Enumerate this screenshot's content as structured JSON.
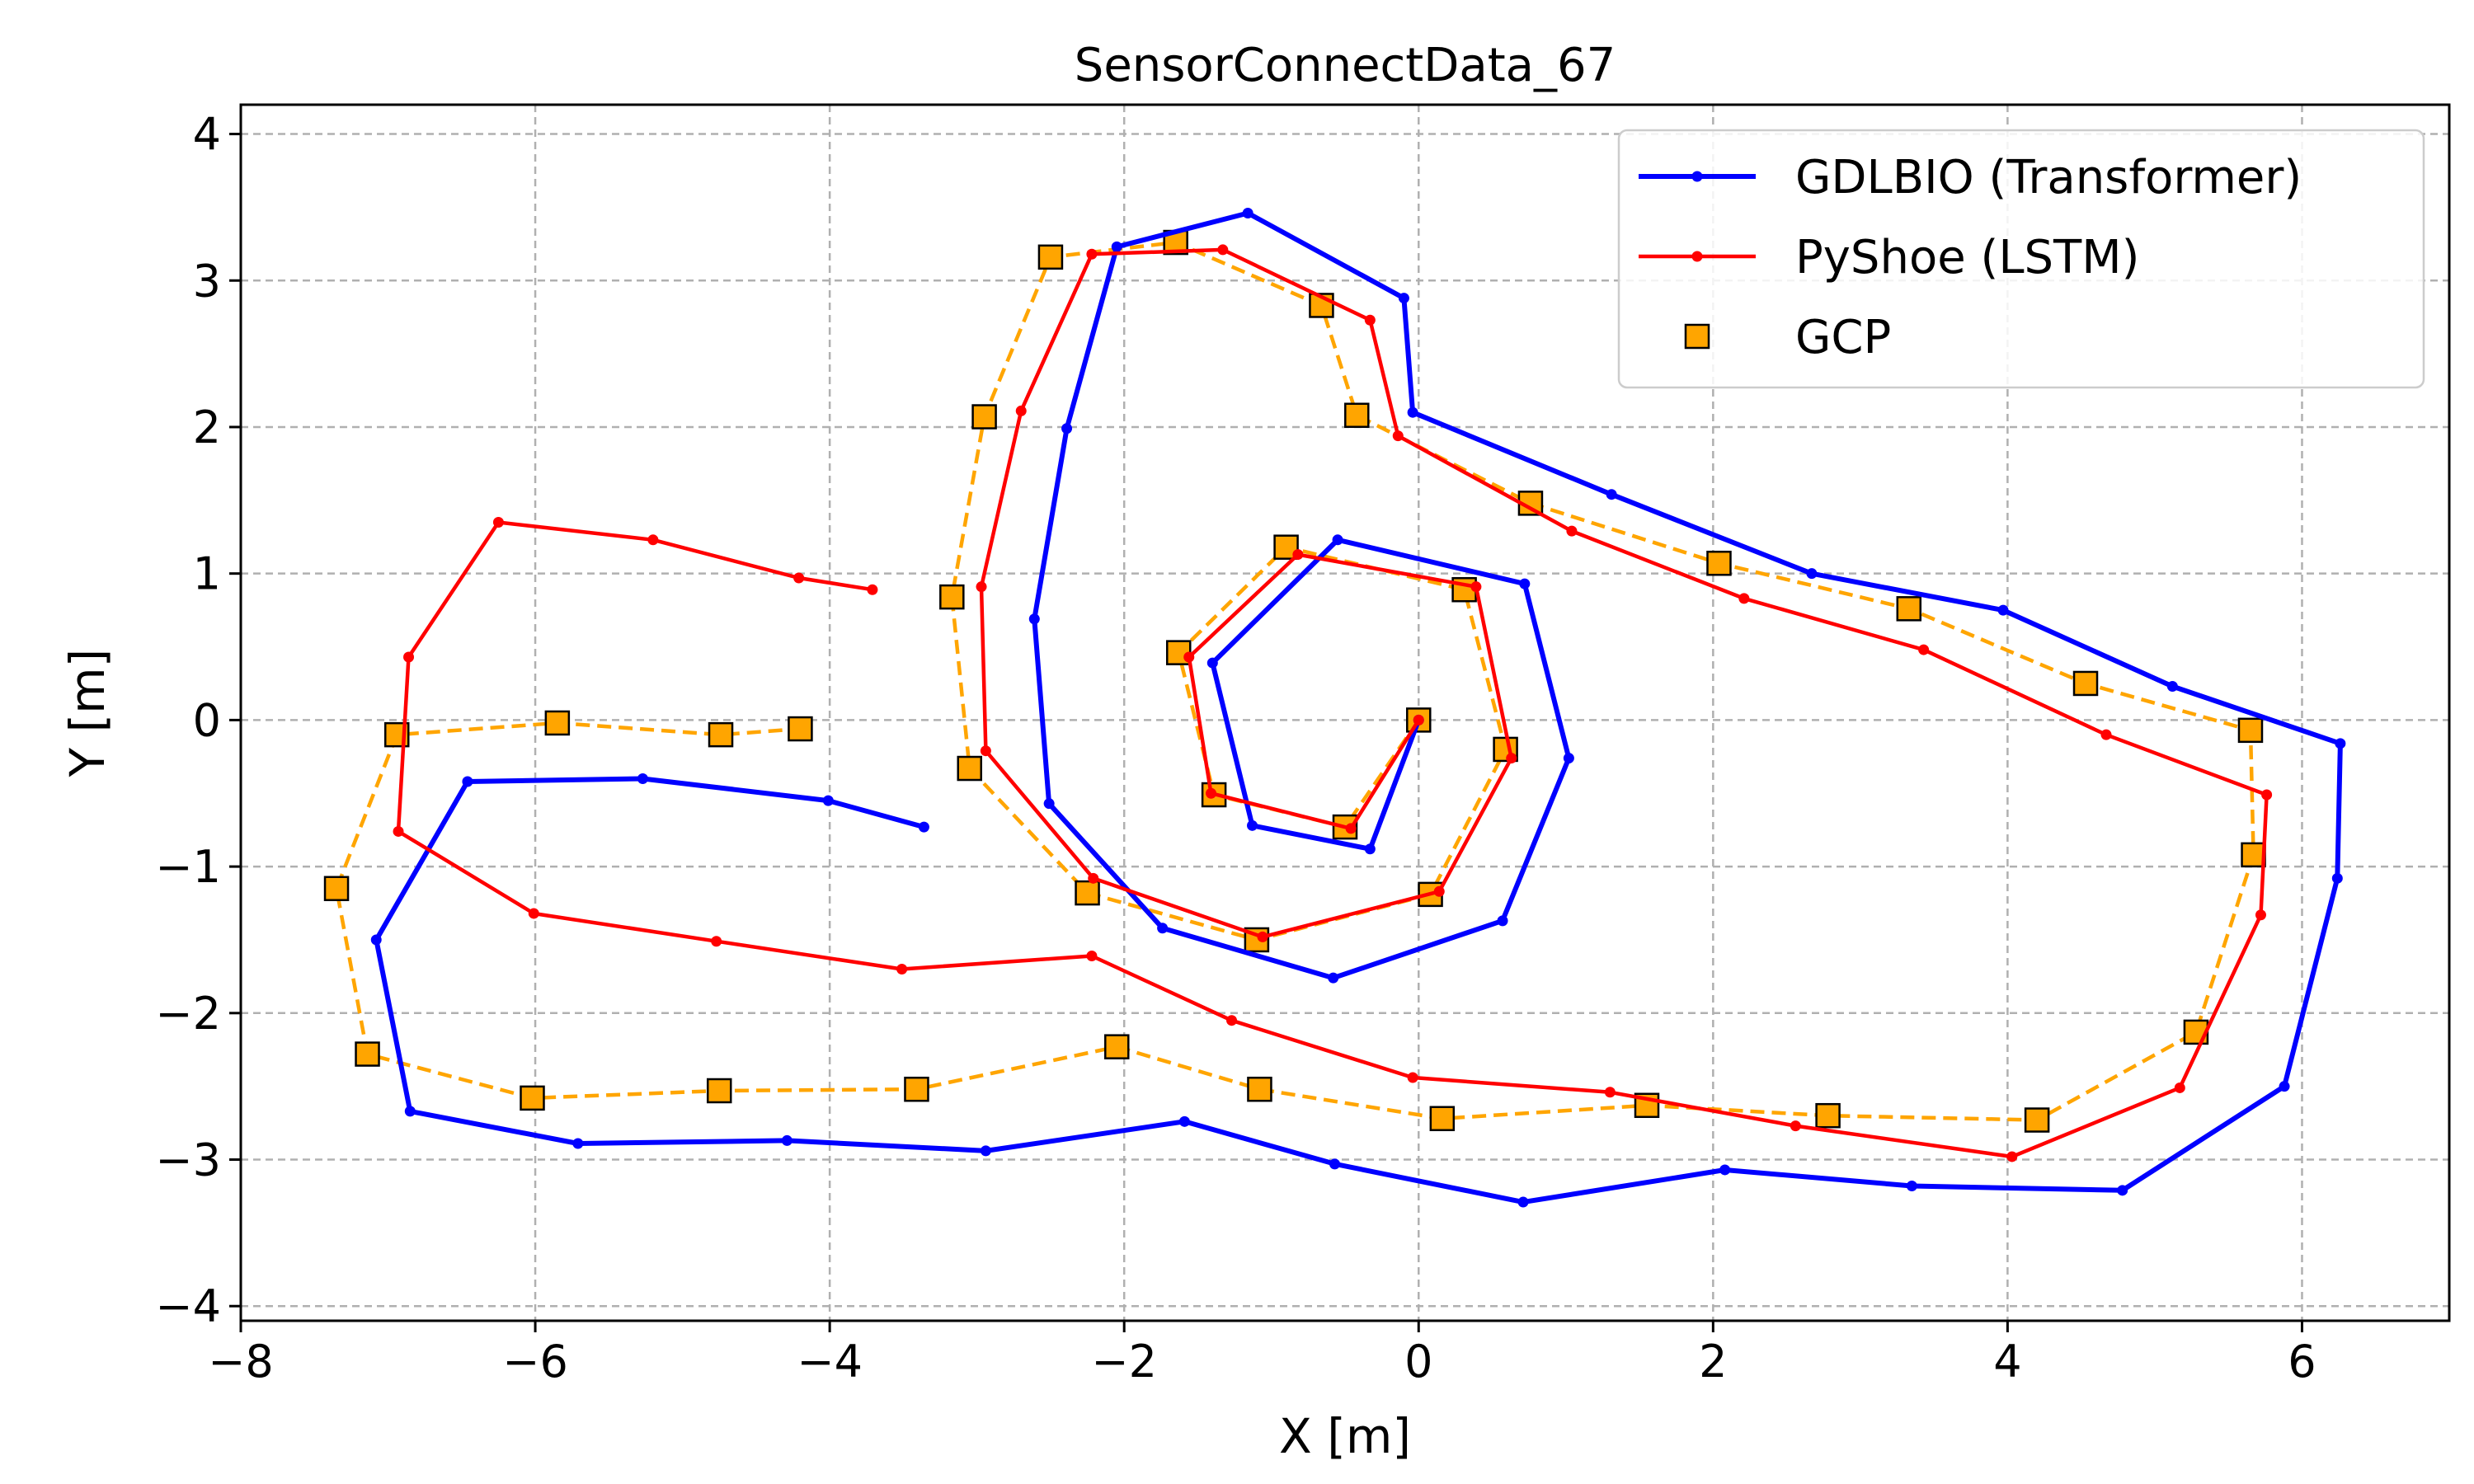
{
  "chart_data": {
    "type": "line",
    "title": "SensorConnectData_67",
    "xlabel": "X [m]",
    "ylabel": "Y [m]",
    "xlim": [
      -8,
      7
    ],
    "ylim": [
      -4.1,
      4.2
    ],
    "xticks": [
      -8,
      -6,
      -4,
      -2,
      0,
      2,
      4,
      6
    ],
    "yticks": [
      -4,
      -3,
      -2,
      -1,
      0,
      1,
      2,
      3,
      4
    ],
    "grid": true,
    "legend_position": "top-right",
    "series": [
      {
        "name": "GDLBIO (Transformer)",
        "color": "#0000ff",
        "style": "solid",
        "marker": "circle",
        "points": [
          [
            0,
            0
          ],
          [
            -0.33,
            -0.88
          ],
          [
            -1.13,
            -0.72
          ],
          [
            -1.4,
            0.39
          ],
          [
            -0.55,
            1.23
          ],
          [
            0.72,
            0.93
          ],
          [
            1.02,
            -0.26
          ],
          [
            0.57,
            -1.37
          ],
          [
            -0.58,
            -1.76
          ],
          [
            -1.74,
            -1.42
          ],
          [
            -2.51,
            -0.57
          ],
          [
            -2.61,
            0.69
          ],
          [
            -2.39,
            1.99
          ],
          [
            -2.05,
            3.23
          ],
          [
            -1.16,
            3.46
          ],
          [
            -0.1,
            2.88
          ],
          [
            -0.04,
            2.1
          ],
          [
            1.31,
            1.54
          ],
          [
            2.67,
            1.0
          ],
          [
            3.97,
            0.75
          ],
          [
            5.12,
            0.23
          ],
          [
            6.26,
            -0.16
          ],
          [
            6.24,
            -1.08
          ],
          [
            5.88,
            -2.5
          ],
          [
            4.78,
            -3.21
          ],
          [
            3.35,
            -3.18
          ],
          [
            2.08,
            -3.07
          ],
          [
            0.71,
            -3.29
          ],
          [
            -0.57,
            -3.03
          ],
          [
            -1.59,
            -2.74
          ],
          [
            -2.94,
            -2.94
          ],
          [
            -4.29,
            -2.87
          ],
          [
            -5.71,
            -2.89
          ],
          [
            -6.85,
            -2.67
          ],
          [
            -7.08,
            -1.5
          ],
          [
            -6.46,
            -0.42
          ],
          [
            -5.27,
            -0.4
          ],
          [
            -4.01,
            -0.55
          ],
          [
            -3.36,
            -0.73
          ]
        ]
      },
      {
        "name": "PyShoe (LSTM)",
        "color": "#ff0000",
        "style": "solid",
        "marker": "circle",
        "points": [
          [
            0,
            0
          ],
          [
            -0.46,
            -0.74
          ],
          [
            -1.41,
            -0.5
          ],
          [
            -1.56,
            0.43
          ],
          [
            -0.82,
            1.13
          ],
          [
            0.39,
            0.91
          ],
          [
            0.63,
            -0.26
          ],
          [
            0.14,
            -1.17
          ],
          [
            -1.06,
            -1.48
          ],
          [
            -2.21,
            -1.08
          ],
          [
            -2.94,
            -0.21
          ],
          [
            -2.97,
            0.91
          ],
          [
            -2.7,
            2.11
          ],
          [
            -2.22,
            3.18
          ],
          [
            -1.33,
            3.21
          ],
          [
            -0.33,
            2.73
          ],
          [
            -0.14,
            1.94
          ],
          [
            1.04,
            1.29
          ],
          [
            2.21,
            0.83
          ],
          [
            3.43,
            0.48
          ],
          [
            4.67,
            -0.1
          ],
          [
            5.76,
            -0.51
          ],
          [
            5.72,
            -1.33
          ],
          [
            5.17,
            -2.51
          ],
          [
            4.03,
            -2.98
          ],
          [
            2.56,
            -2.77
          ],
          [
            1.3,
            -2.54
          ],
          [
            -0.04,
            -2.44
          ],
          [
            -1.27,
            -2.05
          ],
          [
            -2.22,
            -1.61
          ],
          [
            -3.51,
            -1.7
          ],
          [
            -4.77,
            -1.51
          ],
          [
            -6.01,
            -1.32
          ],
          [
            -6.93,
            -0.76
          ],
          [
            -6.86,
            0.43
          ],
          [
            -6.25,
            1.35
          ],
          [
            -5.2,
            1.23
          ],
          [
            -4.21,
            0.97
          ],
          [
            -3.71,
            0.89
          ]
        ]
      },
      {
        "name": "GCP",
        "color": "#ffa500",
        "style": "dashed",
        "marker": "square",
        "points": [
          [
            0,
            0
          ],
          [
            -0.5,
            -0.73
          ],
          [
            -1.39,
            -0.51
          ],
          [
            -1.63,
            0.46
          ],
          [
            -0.9,
            1.18
          ],
          [
            0.31,
            0.89
          ],
          [
            0.59,
            -0.2
          ],
          [
            0.08,
            -1.19
          ],
          [
            -1.1,
            -1.5
          ],
          [
            -2.25,
            -1.18
          ],
          [
            -3.05,
            -0.33
          ],
          [
            -3.17,
            0.84
          ],
          [
            -2.95,
            2.07
          ],
          [
            -2.5,
            3.16
          ],
          [
            -1.65,
            3.26
          ],
          [
            -0.66,
            2.83
          ],
          [
            -0.42,
            2.08
          ],
          [
            0.76,
            1.48
          ],
          [
            2.04,
            1.07
          ],
          [
            3.33,
            0.76
          ],
          [
            4.53,
            0.25
          ],
          [
            5.65,
            -0.07
          ],
          [
            5.67,
            -0.92
          ],
          [
            5.28,
            -2.13
          ],
          [
            4.2,
            -2.73
          ],
          [
            2.78,
            -2.7
          ],
          [
            1.55,
            -2.63
          ],
          [
            0.16,
            -2.72
          ],
          [
            -1.08,
            -2.52
          ],
          [
            -2.05,
            -2.23
          ],
          [
            -3.41,
            -2.52
          ],
          [
            -4.75,
            -2.53
          ],
          [
            -6.02,
            -2.58
          ],
          [
            -7.14,
            -2.28
          ],
          [
            -7.35,
            -1.15
          ],
          [
            -6.94,
            -0.1
          ],
          [
            -5.85,
            -0.02
          ],
          [
            -4.74,
            -0.1
          ],
          [
            -4.2,
            -0.06
          ]
        ]
      }
    ]
  }
}
